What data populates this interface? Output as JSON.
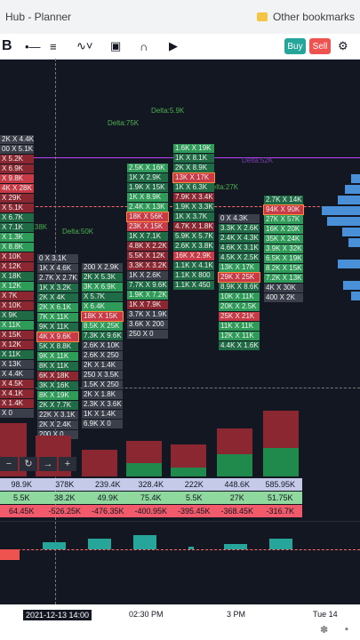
{
  "browser": {
    "tab_title": "Hub - Planner",
    "bookmarks_label": "Other bookmarks"
  },
  "toolbar": {
    "logo": "B",
    "buy_label": "Buy",
    "sell_label": "Sell"
  },
  "delta_labels": [
    "Delta:75K",
    "Delta:5.9K",
    "Delta:38K",
    "Delta:50K",
    "Delta:27K",
    "Delta:52K"
  ],
  "footprint": {
    "col0": [
      "2K X 4.4K",
      "00 X 5.1K",
      "X 5.2K",
      "X 6.9K",
      "X 9.8K",
      "4K X 28K",
      "X 29K",
      "X 5.1K",
      "X 6.7K",
      "X 7.1K",
      "X 1.3K",
      "X 8.8K",
      "X 10K",
      "X 12K",
      "X 18K",
      "X 12K",
      "X 7K",
      "X 10K",
      "X 9K",
      "X 11K",
      "X 15K",
      "X 12K",
      "X 11K",
      "X 13K",
      "X 4.4K",
      "X 4.5K",
      "X 4.1K",
      "X 1.4K",
      "X 0"
    ],
    "col1": [
      "0 X 3.1K",
      "1K X 4.6K",
      "2.7K X 2.7K",
      "1K X 3.2K",
      "2K X 4K",
      "2K X 6.1K",
      "7K X 11K",
      "9K X 11K",
      "4K X 9.6K",
      "5K X 8.8K",
      "9K X 11K",
      "8K X 11K",
      "6K X 18K",
      "3K X 16K",
      "8K X 19K",
      "2K X 7.7K",
      "22K X 3.1K",
      "2K X 2.4K",
      "200 X 0"
    ],
    "col2": [
      "200 X 2.9K",
      "2K X 5.3K",
      "3K X 6.9K",
      "X 5.7K",
      "X 6.4K",
      "18K X 15K",
      "8.5K X 25K",
      "7.3K X 9.6K",
      "2.6K X 10K",
      "2.6K X 250",
      "2K X 1.4K",
      "250 X 3.5K",
      "1.5K X 250",
      "2K X 1.8K",
      "2.3K X 3.6K",
      "1K X 1.4K",
      "6.9K X 0"
    ],
    "col3": [
      "2.5K X 16K",
      "1K X 2.9K",
      "1.9K X 15K",
      "1K X 8.9K",
      "2.4K X 13K",
      "18K X 56K",
      "23K X 15K",
      "1K X 7.1K",
      "4.8K X 2.2K",
      "5.5K X 12K",
      "3.3K X 3.2K",
      "1K X 2.6K",
      "7.7K X 9.6K",
      "1.9K X 7.2K",
      "1K X 7.9K",
      "3.7K X 1.9K",
      "3.6K X 200",
      "250 X 0"
    ],
    "col4": [
      "1.6K X 19K",
      "1K X 8.1K",
      "2K X 8.9K",
      "13K X 17K",
      "1K X 6.3K",
      "7.9K X 3.4K",
      "1.9K X 3.3K",
      "1K X 3.7K",
      "4.7K X 1.8K",
      "5.9K X 5.7K",
      "2.6K X 3.8K",
      "16K X 2.9K",
      "1.1K X 4.1K",
      "1.1K X 800",
      "1.1K X 450"
    ],
    "col5": [
      "0 X 4.3K",
      "3.3K X 2.6K",
      "2.4K X 4.3K",
      "4.6K X 3.1K",
      "4.5K X 2.5K",
      "13K X 17K",
      "29K X 25K",
      "8.9K X 8.6K",
      "10K X 11K",
      "20K X 2.5K",
      "25K X 21K",
      "11K X 11K",
      "12K X 11K",
      "4.4K X 1.6K"
    ],
    "col6": [
      "2.7K X 14K",
      "94K X 90K",
      "27K X 57K",
      "16K X 20K",
      "35K X 24K",
      "3.9K X 32K",
      "6.5K X 19K",
      "8.2K X 15K",
      "7.2K X 13K",
      "4K X 30K",
      "400 X 2K"
    ]
  },
  "stats": {
    "row1": [
      "98.9K",
      "378K",
      "239.4K",
      "328.4K",
      "222K",
      "448.6K",
      "585.95K"
    ],
    "row2": [
      "5.5K",
      "38.2K",
      "49.9K",
      "75.4K",
      "5.5K",
      "27K",
      "51.75K"
    ],
    "row3": [
      "64.45K",
      "-526.25K",
      "-476.35K",
      "-400.95K",
      "-395.45K",
      "-368.45K",
      "-316.7K"
    ]
  },
  "time_axis": {
    "cursor_label": "2021-12-13 14:00",
    "ticks": [
      "02:30 PM",
      "3 PM",
      "Tue 14"
    ]
  },
  "colors": {
    "background": "#131722",
    "buy": "#26a69a",
    "sell": "#ef5350",
    "level_line": "#c040ff"
  }
}
